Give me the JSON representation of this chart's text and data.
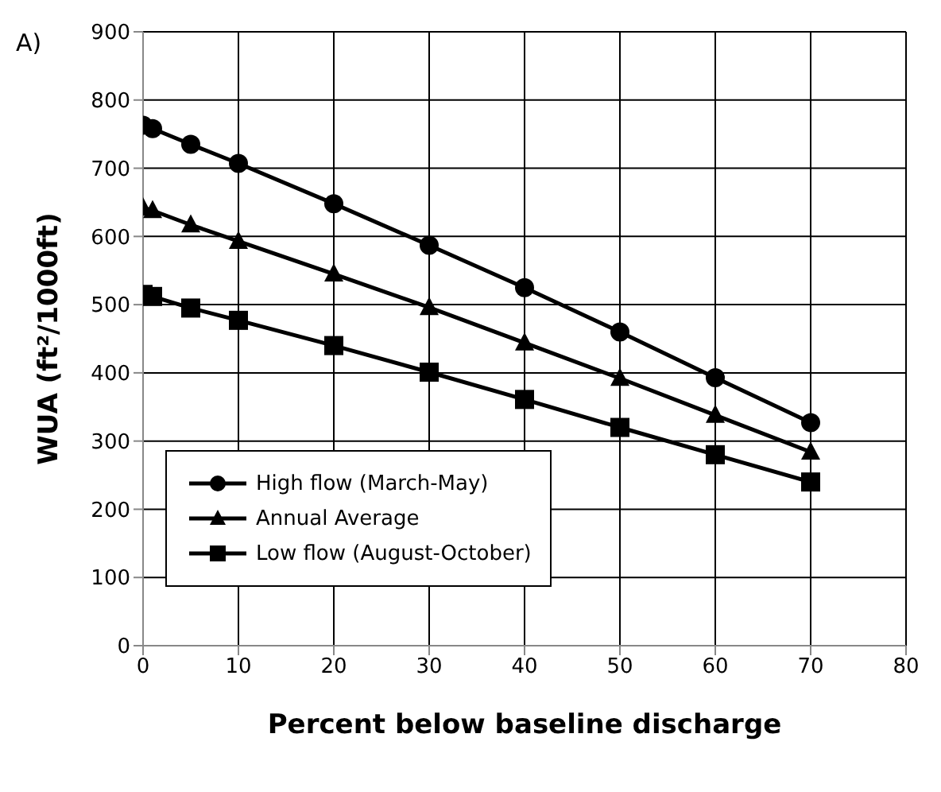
{
  "chart_data": {
    "type": "line",
    "xlabel": "Percent below baseline discharge",
    "ylabel": "WUA (ft²/1000ft)",
    "annotations": [
      "A)"
    ],
    "x": [
      0,
      1,
      5,
      10,
      20,
      30,
      40,
      50,
      60,
      70
    ],
    "series": [
      {
        "name": "High flow (March-May)",
        "color": "#000000",
        "marker": "circle",
        "values": [
          763,
          758,
          735,
          707,
          648,
          587,
          525,
          460,
          393,
          327
        ]
      },
      {
        "name": "Annual Average",
        "color": "#000000",
        "marker": "triangle",
        "values": [
          642,
          638,
          617,
          593,
          545,
          496,
          444,
          392,
          338,
          284
        ]
      },
      {
        "name": "Low flow (August-October)",
        "color": "#000000",
        "marker": "square",
        "values": [
          515,
          512,
          495,
          477,
          440,
          401,
          361,
          320,
          280,
          240
        ]
      }
    ],
    "xlim": [
      0,
      80
    ],
    "xticks": [
      0,
      10,
      20,
      30,
      40,
      50,
      60,
      70,
      80
    ],
    "ylim": [
      0,
      900
    ],
    "yticks": [
      0,
      100,
      200,
      300,
      400,
      500,
      600,
      700,
      800,
      900
    ],
    "grid": true,
    "legend": "bottom left"
  }
}
